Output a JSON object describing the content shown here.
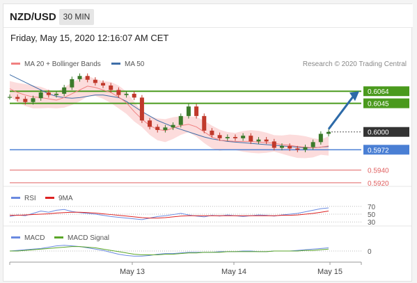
{
  "header": {
    "symbol": "NZD/USD",
    "timeframe": "30 MIN",
    "datetime": "Friday, May 15, 2020 12:16:07 AM CET"
  },
  "legend": {
    "ma20": "MA 20 + Bollinger Bands",
    "ma50": "MA 50",
    "credit": "Research © 2020 Trading Central"
  },
  "colors": {
    "ma20": "#f08080",
    "ma50": "#3f6ea8",
    "bands": "#fbd3d3",
    "resistance": "#4a9a1d",
    "support": "#4a7fd4",
    "minor": "#e06060",
    "price": "#333333",
    "candle_up": "#3a7a2a",
    "candle_down": "#c0392b",
    "rsi": "#6a8ae0",
    "rsi_ma": "#dd2222",
    "macd": "#6a8ae0",
    "macd_signal": "#5aa628",
    "arrow": "#2d6aa8"
  },
  "chart_data": [
    {
      "type": "line",
      "title": "",
      "ylim": [
        0.591,
        0.6085
      ],
      "x_labels": [
        "May 13",
        "May 14",
        "May 15"
      ],
      "price_levels": [
        {
          "value": 0.6064,
          "label": "0.6064",
          "kind": "resistance"
        },
        {
          "value": 0.6045,
          "label": "0.6045",
          "kind": "resistance"
        },
        {
          "value": 0.6,
          "label": "0.6000",
          "kind": "last"
        },
        {
          "value": 0.5972,
          "label": "0.5972",
          "kind": "support"
        },
        {
          "value": 0.594,
          "label": "0.5940",
          "kind": "minor"
        },
        {
          "value": 0.592,
          "label": "0.5920",
          "kind": "minor"
        }
      ],
      "series": [
        {
          "name": "MA 20 + Bollinger Bands",
          "values": [
            0.6068,
            0.6062,
            0.6058,
            0.6055,
            0.6054,
            0.6052,
            0.605,
            0.6054,
            0.606,
            0.6066,
            0.6072,
            0.607,
            0.6066,
            0.6062,
            0.6055,
            0.6046,
            0.6032,
            0.602,
            0.601,
            0.6004,
            0.6002,
            0.6006,
            0.601,
            0.6012,
            0.6008,
            0.6,
            0.5992,
            0.5987,
            0.5986,
            0.5985,
            0.5985,
            0.5985,
            0.5984,
            0.5983,
            0.5982,
            0.598,
            0.5979,
            0.5977,
            0.5976,
            0.5975,
            0.5976,
            0.5978
          ]
        },
        {
          "name": "MA 50",
          "values": [
            0.609,
            0.6084,
            0.6078,
            0.6072,
            0.6066,
            0.606,
            0.6056,
            0.6054,
            0.6053,
            0.6054,
            0.6056,
            0.6058,
            0.6058,
            0.6056,
            0.6054,
            0.6048,
            0.604,
            0.6032,
            0.6025,
            0.6018,
            0.6013,
            0.6008,
            0.6004,
            0.6,
            0.5996,
            0.5992,
            0.5989,
            0.5987,
            0.5985,
            0.5984,
            0.5983,
            0.5982,
            0.5981,
            0.598,
            0.5979,
            0.5978,
            0.5977,
            0.5976,
            0.5975,
            0.5975,
            0.5976,
            0.5977
          ]
        },
        {
          "name": "Price",
          "values": [
            0.6055,
            0.6052,
            0.6047,
            0.6053,
            0.6062,
            0.6058,
            0.606,
            0.607,
            0.6083,
            0.6088,
            0.6082,
            0.6077,
            0.6073,
            0.6066,
            0.6058,
            0.606,
            0.6054,
            0.6018,
            0.6008,
            0.6003,
            0.6007,
            0.6011,
            0.6025,
            0.604,
            0.6025,
            0.6002,
            0.5995,
            0.599,
            0.5992,
            0.599,
            0.5994,
            0.5985,
            0.5988,
            0.5985,
            0.5975,
            0.5978,
            0.5974,
            0.5972,
            0.5976,
            0.5984,
            0.5997,
            0.6
          ]
        }
      ],
      "forecast": {
        "from": 0.6,
        "to": 0.6064
      }
    },
    {
      "type": "line",
      "title": "RSI",
      "ylim": [
        25,
        75
      ],
      "ticks": [
        70,
        50,
        30
      ],
      "series": [
        {
          "name": "RSI",
          "values": [
            44,
            48,
            46,
            52,
            58,
            55,
            60,
            62,
            57,
            54,
            52,
            50,
            47,
            44,
            42,
            40,
            38,
            36,
            40,
            44,
            46,
            49,
            52,
            48,
            45,
            43,
            47,
            45,
            48,
            46,
            44,
            46,
            48,
            47,
            45,
            48,
            50,
            52,
            56,
            60,
            64,
            66
          ]
        },
        {
          "name": "9MA",
          "values": [
            47,
            47,
            48,
            49,
            50,
            51,
            53,
            54,
            55,
            55,
            54,
            53,
            51,
            49,
            47,
            45,
            43,
            41,
            40,
            40,
            41,
            43,
            45,
            46,
            46,
            46,
            46,
            46,
            46,
            46,
            46,
            46,
            46,
            46,
            46,
            47,
            47,
            48,
            50,
            52,
            55,
            58
          ]
        }
      ]
    },
    {
      "type": "line",
      "title": "MACD",
      "ylim": [
        -0.0012,
        0.0012
      ],
      "ticks": [
        0
      ],
      "series": [
        {
          "name": "MACD",
          "values": [
            0.0,
            0.0001,
            0.0002,
            0.0003,
            0.0004,
            0.0006,
            0.0008,
            0.0009,
            0.0008,
            0.0007,
            0.0005,
            0.0003,
            0.0001,
            -0.0002,
            -0.0005,
            -0.0007,
            -0.0008,
            -0.0008,
            -0.0007,
            -0.0005,
            -0.0004,
            -0.0004,
            -0.0003,
            -0.0002,
            -0.0002,
            -0.0002,
            -0.0002,
            -0.0001,
            -0.0001,
            -0.0001,
            0.0,
            0.0,
            -0.0001,
            -0.0001,
            0.0,
            0.0,
            0.0,
            0.0001,
            0.0002,
            0.0003,
            0.0004,
            0.0005
          ]
        },
        {
          "name": "MACD Signal",
          "values": [
            0.0,
            0.0,
            0.0001,
            0.0002,
            0.0003,
            0.0004,
            0.0005,
            0.0006,
            0.0007,
            0.0007,
            0.0006,
            0.0005,
            0.0003,
            0.0001,
            -0.0001,
            -0.0003,
            -0.0005,
            -0.0006,
            -0.0006,
            -0.0006,
            -0.0005,
            -0.0005,
            -0.0004,
            -0.0003,
            -0.0003,
            -0.0002,
            -0.0002,
            -0.0002,
            -0.0001,
            -0.0001,
            -0.0001,
            -0.0001,
            -0.0001,
            -0.0001,
            0.0,
            0.0,
            0.0,
            0.0,
            0.0001,
            0.0001,
            0.0002,
            0.0003
          ]
        }
      ]
    }
  ]
}
